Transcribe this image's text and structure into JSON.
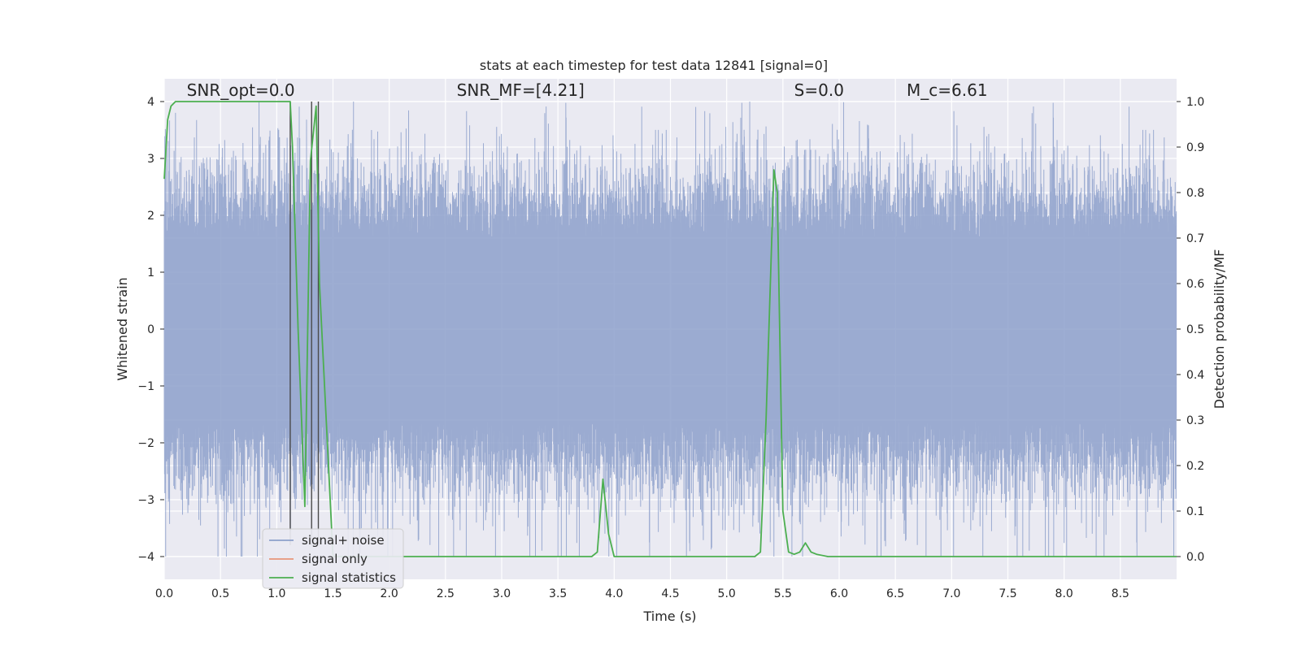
{
  "chart_data": {
    "type": "line",
    "title": "stats at each timestep for test data 12841 [signal=0]",
    "xlabel": "Time (s)",
    "ylabel": "Whitened strain",
    "y2label": "Detection probability/MF",
    "xlim": [
      0,
      9
    ],
    "ylim": [
      -4.4,
      4.4
    ],
    "y2lim": [
      -0.05,
      1.05
    ],
    "x_ticks": [
      0.0,
      0.5,
      1.0,
      1.5,
      2.0,
      2.5,
      3.0,
      3.5,
      4.0,
      4.5,
      5.0,
      5.5,
      6.0,
      6.5,
      7.0,
      7.5,
      8.0,
      8.5
    ],
    "x_tick_labels": [
      "0.0",
      "0.5",
      "1.0",
      "1.5",
      "2.0",
      "2.5",
      "3.0",
      "3.5",
      "4.0",
      "4.5",
      "5.0",
      "5.5",
      "6.0",
      "6.5",
      "7.0",
      "7.5",
      "8.0",
      "8.5"
    ],
    "y_ticks": [
      -4,
      -3,
      -2,
      -1,
      0,
      1,
      2,
      3,
      4
    ],
    "y_tick_labels": [
      "−4",
      "−3",
      "−2",
      "−1",
      "0",
      "1",
      "2",
      "3",
      "4"
    ],
    "y2_ticks": [
      0.0,
      0.1,
      0.2,
      0.3,
      0.4,
      0.5,
      0.6,
      0.7,
      0.8,
      0.9,
      1.0
    ],
    "y2_tick_labels": [
      "0.0",
      "0.1",
      "0.2",
      "0.3",
      "0.4",
      "0.5",
      "0.6",
      "0.7",
      "0.8",
      "0.9",
      "1.0"
    ],
    "grid": true,
    "legend_placement": "lower-left",
    "annotations": [
      {
        "id": "snr-opt",
        "text": "SNR_opt=0.0",
        "x": 0.2,
        "y": 4.1
      },
      {
        "id": "snr-mf",
        "text": "SNR_MF=[4.21]",
        "x": 2.6,
        "y": 4.1
      },
      {
        "id": "s-stat",
        "text": "S=0.0",
        "x": 5.6,
        "y": 4.1
      },
      {
        "id": "mc",
        "text": "M_c=6.61",
        "x": 6.6,
        "y": 4.1
      }
    ],
    "series": [
      {
        "name": "signal+ noise",
        "color": "#8da0cb",
        "axis": "left",
        "style": "dense_noise",
        "x_range": [
          0,
          9
        ],
        "typical_amplitude": 2.0,
        "peak_amplitude": 4.0
      },
      {
        "name": "signal only",
        "color": "#e8957a",
        "axis": "left",
        "x": [],
        "y": []
      },
      {
        "name": "signal statistics",
        "color": "#4caf50",
        "axis": "right",
        "x": [
          0.0,
          0.03,
          0.06,
          0.1,
          0.15,
          0.5,
          1.0,
          1.12,
          1.14,
          1.19,
          1.25,
          1.3,
          1.35,
          1.38,
          1.45,
          1.5,
          2.0,
          3.0,
          3.8,
          3.85,
          3.9,
          3.95,
          4.0,
          5.0,
          5.25,
          5.3,
          5.35,
          5.42,
          5.45,
          5.5,
          5.55,
          5.6,
          5.65,
          5.7,
          5.75,
          5.8,
          5.9,
          9.0
        ],
        "y": [
          0.83,
          0.96,
          0.99,
          1.0,
          1.0,
          1.0,
          1.0,
          1.0,
          0.9,
          0.5,
          0.11,
          0.87,
          0.99,
          0.6,
          0.25,
          0.0,
          0.0,
          0.0,
          0.0,
          0.01,
          0.17,
          0.05,
          0.0,
          0.0,
          0.0,
          0.01,
          0.3,
          0.85,
          0.8,
          0.1,
          0.01,
          0.005,
          0.01,
          0.03,
          0.01,
          0.005,
          0.0,
          0.0
        ]
      }
    ],
    "vertical_lines": {
      "color": "#4a4a4a",
      "x": [
        1.12,
        1.31,
        1.37
      ],
      "y_top": 4.0,
      "y_bottom": -3.8
    }
  }
}
